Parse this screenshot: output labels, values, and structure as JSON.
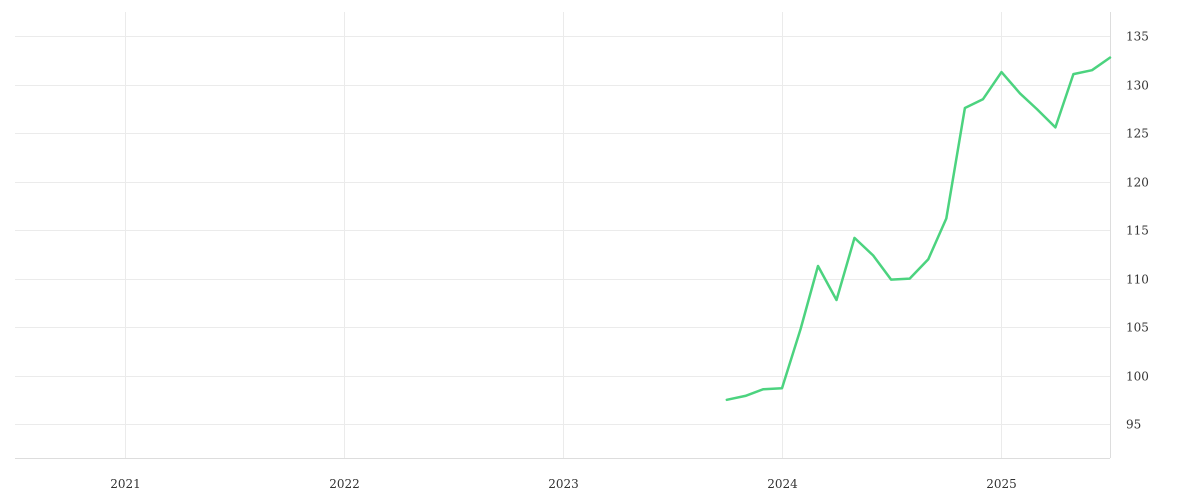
{
  "chart_data": {
    "type": "line",
    "title": "",
    "xlabel": "",
    "ylabel": "",
    "x_axis": {
      "type": "date",
      "range": [
        "2020-07-01",
        "2025-07-01"
      ],
      "tick_labels": [
        "2021",
        "2022",
        "2023",
        "2024",
        "2025"
      ],
      "tick_dates": [
        "2021-01-01",
        "2022-01-01",
        "2023-01-01",
        "2024-01-01",
        "2025-01-01"
      ]
    },
    "y_axis": {
      "position": "right",
      "range": [
        91.5,
        137.5
      ],
      "tick_values": [
        95,
        100,
        105,
        110,
        115,
        120,
        125,
        130,
        135
      ],
      "tick_labels": [
        "95",
        "100",
        "105",
        "110",
        "115",
        "120",
        "125",
        "130",
        "135"
      ]
    },
    "grid": true,
    "legend": "none",
    "series": [
      {
        "color": "#4cd37f",
        "points": [
          {
            "x": "2023-10-01",
            "y": 97.5
          },
          {
            "x": "2023-11-01",
            "y": 97.9
          },
          {
            "x": "2023-12-01",
            "y": 98.6
          },
          {
            "x": "2024-01-01",
            "y": 98.7
          },
          {
            "x": "2024-02-01",
            "y": 104.8
          },
          {
            "x": "2024-03-01",
            "y": 111.3
          },
          {
            "x": "2024-04-01",
            "y": 107.8
          },
          {
            "x": "2024-05-01",
            "y": 114.2
          },
          {
            "x": "2024-06-01",
            "y": 112.4
          },
          {
            "x": "2024-07-01",
            "y": 109.9
          },
          {
            "x": "2024-08-01",
            "y": 110.0
          },
          {
            "x": "2024-09-01",
            "y": 112.0
          },
          {
            "x": "2024-10-01",
            "y": 116.2
          },
          {
            "x": "2024-11-01",
            "y": 127.6
          },
          {
            "x": "2024-12-01",
            "y": 128.5
          },
          {
            "x": "2025-01-01",
            "y": 131.3
          },
          {
            "x": "2025-02-01",
            "y": 129.1
          },
          {
            "x": "2025-03-01",
            "y": 127.5
          },
          {
            "x": "2025-04-01",
            "y": 125.6
          },
          {
            "x": "2025-05-01",
            "y": 131.1
          },
          {
            "x": "2025-06-01",
            "y": 131.5
          },
          {
            "x": "2025-07-01",
            "y": 132.8
          }
        ]
      }
    ]
  }
}
